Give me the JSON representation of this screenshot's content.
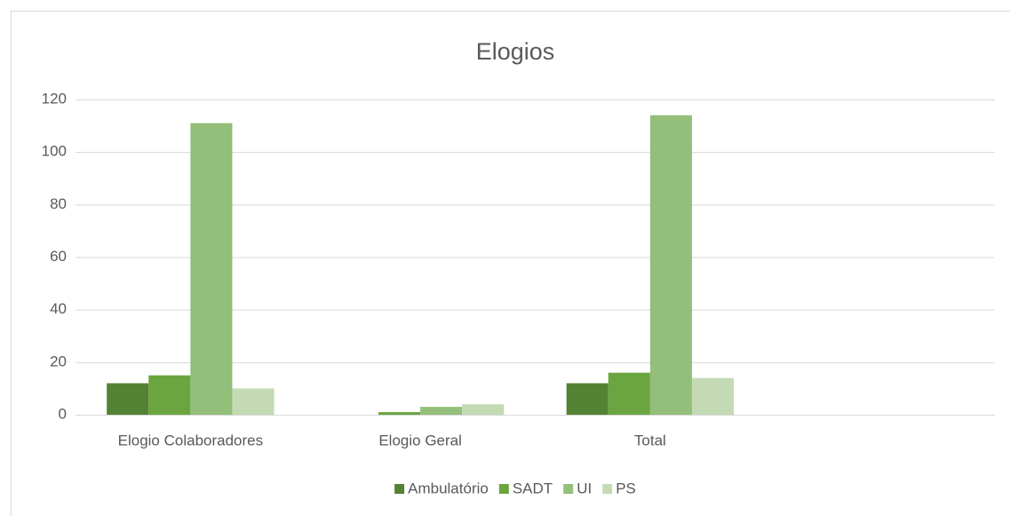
{
  "chart_data": {
    "type": "bar",
    "title": "Elogios",
    "categories": [
      "Elogio Colaboradores",
      "Elogio Geral",
      "Total",
      null
    ],
    "series": [
      {
        "name": "Ambulatório",
        "color": "#548235",
        "values": [
          12,
          0,
          12,
          null
        ]
      },
      {
        "name": "SADT",
        "color": "#6aa53f",
        "values": [
          15,
          1,
          16,
          null
        ]
      },
      {
        "name": "UI",
        "color": "#93bf7a",
        "values": [
          111,
          3,
          114,
          null
        ]
      },
      {
        "name": "PS",
        "color": "#c4dab4",
        "values": [
          10,
          4,
          14,
          null
        ]
      }
    ],
    "ylim": [
      0,
      120
    ],
    "yticks": [
      0,
      20,
      40,
      60,
      80,
      100,
      120
    ],
    "grid": true,
    "legend": "bottom"
  }
}
